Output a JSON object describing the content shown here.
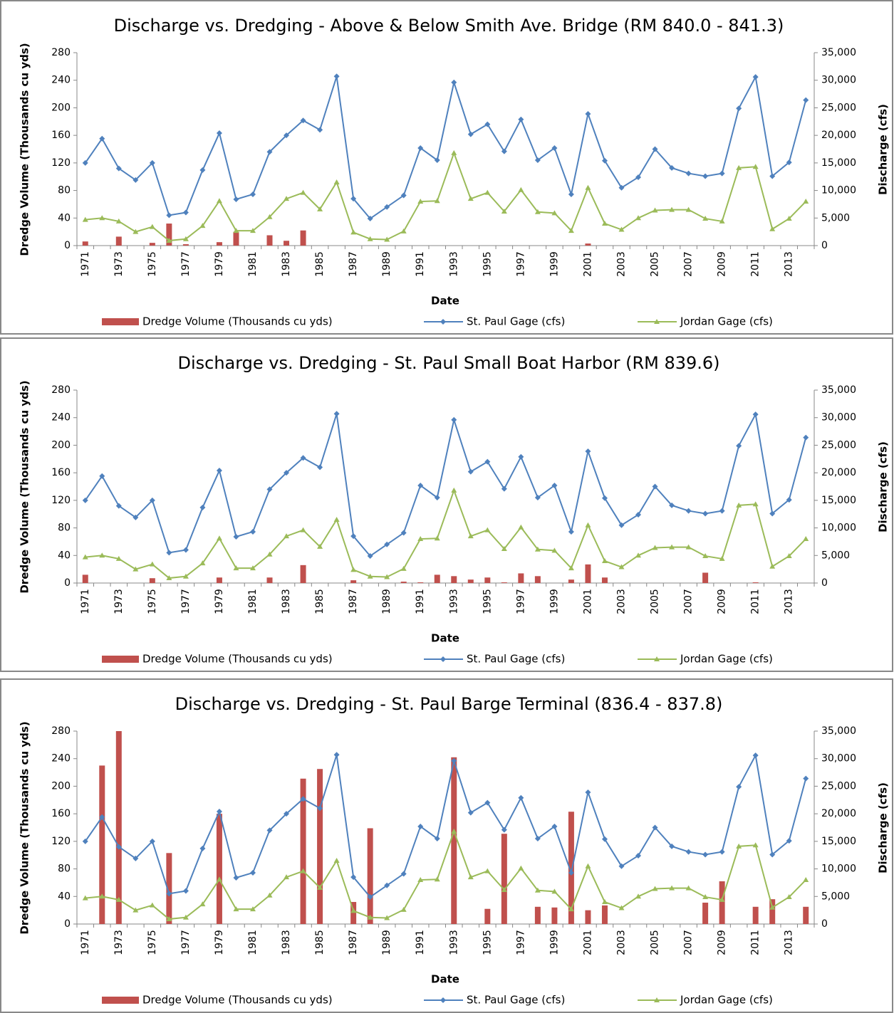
{
  "chart_data": [
    {
      "type": "bar-line",
      "title": "Discharge vs. Dredging - Above & Below Smith Ave. Bridge (RM 840.0 - 841.3)",
      "xlabel": "Date",
      "ylabel": "Dredge Volume (Thousands cu yds)",
      "y2label": "Discharge (cfs)",
      "categories": [
        "1971",
        null,
        "1973",
        null,
        "1975",
        null,
        "1977",
        null,
        "1979",
        null,
        "1981",
        null,
        "1983",
        null,
        "1985",
        null,
        "1987",
        null,
        "1989",
        null,
        "1991",
        null,
        "1993",
        null,
        "1995",
        null,
        "1997",
        null,
        "1999",
        null,
        "2001",
        null,
        "2003",
        null,
        "2005",
        null,
        "2007",
        null,
        "2009",
        null,
        "2011",
        null,
        "2013",
        null
      ],
      "series": [
        {
          "name": "Dredge Volume (Thousands cu yds)",
          "type": "bar",
          "color": "#c0504d",
          "values": [
            6,
            0,
            13,
            0,
            4,
            32,
            2,
            0,
            5,
            20,
            0,
            15,
            7,
            22,
            0,
            0,
            0,
            0,
            0,
            0,
            0,
            0,
            0,
            0,
            0,
            0,
            0,
            0,
            0,
            0,
            3,
            0,
            0,
            0,
            0,
            0,
            0,
            0,
            0,
            0,
            0,
            0,
            0,
            0
          ]
        },
        {
          "name": "St. Paul Gage (cfs)",
          "type": "line",
          "marker": "diamond",
          "axis": "y2",
          "color": "#4f81bd",
          "values": [
            15000,
            19400,
            14000,
            11900,
            15000,
            5500,
            6000,
            13700,
            20400,
            8400,
            9300,
            17000,
            20000,
            22700,
            21000,
            30700,
            8500,
            4900,
            7000,
            9100,
            17700,
            15500,
            29600,
            20200,
            22000,
            17100,
            22900,
            15500,
            17700,
            9300,
            23900,
            15400,
            10500,
            12400,
            17500,
            14100,
            13100,
            12600,
            13100,
            24900,
            30600,
            12600,
            15100,
            26400
          ]
        },
        {
          "name": "Jordan Gage (cfs)",
          "type": "line",
          "marker": "triangle",
          "axis": "y2",
          "color": "#9bbb59",
          "values": [
            4700,
            5000,
            4400,
            2500,
            3400,
            900,
            1200,
            3600,
            8100,
            2700,
            2700,
            5200,
            8500,
            9600,
            6600,
            11500,
            2400,
            1200,
            1100,
            2600,
            8000,
            8100,
            16800,
            8500,
            9600,
            6200,
            10100,
            6100,
            5900,
            2700,
            10500,
            4000,
            2900,
            5000,
            6400,
            6500,
            6500,
            4900,
            4400,
            14100,
            14300,
            3000,
            4900,
            8000
          ]
        }
      ],
      "ylim": [
        0,
        280
      ],
      "yticks": [
        0,
        40,
        80,
        120,
        160,
        200,
        240,
        280
      ],
      "y2lim": [
        0,
        35000
      ],
      "y2ticks": [
        0,
        {
          "value": 5000,
          "label": "5,000"
        },
        {
          "value": 10000,
          "label": "10,000"
        },
        {
          "value": 15000,
          "label": "15,000"
        },
        {
          "value": 20000,
          "label": "20,000"
        },
        {
          "value": 25000,
          "label": "25,000"
        },
        {
          "value": 30000,
          "label": "30,000"
        },
        {
          "value": 35000,
          "label": "35,000"
        }
      ],
      "grid": false,
      "legend": "bottom"
    },
    {
      "type": "bar-line",
      "title": "Discharge vs. Dredging - St. Paul Small Boat Harbor (RM 839.6)",
      "xlabel": "Date",
      "ylabel": "Dredge Volume (Thousands cu yds)",
      "y2label": "Discharge (cfs)",
      "categories": [
        "1971",
        null,
        "1973",
        null,
        "1975",
        null,
        "1977",
        null,
        "1979",
        null,
        "1981",
        null,
        "1983",
        null,
        "1985",
        null,
        "1987",
        null,
        "1989",
        null,
        "1991",
        null,
        "1993",
        null,
        "1995",
        null,
        "1997",
        null,
        "1999",
        null,
        "2001",
        null,
        "2003",
        null,
        "2005",
        null,
        "2007",
        null,
        "2009",
        null,
        "2011",
        null,
        "2013",
        null
      ],
      "series": [
        {
          "name": "Dredge Volume (Thousands cu yds)",
          "type": "bar",
          "color": "#c0504d",
          "values": [
            12,
            0,
            0,
            0,
            7,
            0,
            0,
            0,
            8,
            0,
            0,
            8,
            0,
            26,
            0,
            0,
            4,
            0,
            0,
            2,
            1,
            12,
            10,
            5,
            8,
            1,
            14,
            10,
            0,
            5,
            27,
            8,
            0,
            0,
            0,
            0,
            0,
            15,
            0,
            0,
            1,
            0,
            0,
            0
          ]
        },
        {
          "name": "St. Paul Gage (cfs)",
          "type": "line",
          "marker": "diamond",
          "axis": "y2",
          "color": "#4f81bd",
          "values": [
            15000,
            19400,
            14000,
            11900,
            15000,
            5500,
            6000,
            13700,
            20400,
            8400,
            9300,
            17000,
            20000,
            22700,
            21000,
            30700,
            8500,
            4900,
            7000,
            9100,
            17700,
            15500,
            29600,
            20200,
            22000,
            17100,
            22900,
            15500,
            17700,
            9300,
            23900,
            15400,
            10500,
            12400,
            17500,
            14100,
            13100,
            12600,
            13100,
            24900,
            30600,
            12600,
            15100,
            26400
          ]
        },
        {
          "name": "Jordan Gage (cfs)",
          "type": "line",
          "marker": "triangle",
          "axis": "y2",
          "color": "#9bbb59",
          "values": [
            4700,
            5000,
            4400,
            2500,
            3400,
            900,
            1200,
            3600,
            8100,
            2700,
            2700,
            5200,
            8500,
            9600,
            6600,
            11500,
            2400,
            1200,
            1100,
            2600,
            8000,
            8100,
            16800,
            8500,
            9600,
            6200,
            10100,
            6100,
            5900,
            2700,
            10500,
            4000,
            2900,
            5000,
            6400,
            6500,
            6500,
            4900,
            4400,
            14100,
            14300,
            3000,
            4900,
            8000
          ]
        }
      ],
      "ylim": [
        0,
        280
      ],
      "yticks": [
        0,
        40,
        80,
        120,
        160,
        200,
        240,
        280
      ],
      "y2lim": [
        0,
        35000
      ],
      "y2ticks": [
        0,
        {
          "value": 5000,
          "label": "5,000"
        },
        {
          "value": 10000,
          "label": "10,000"
        },
        {
          "value": 15000,
          "label": "15,000"
        },
        {
          "value": 20000,
          "label": "20,000"
        },
        {
          "value": 25000,
          "label": "25,000"
        },
        {
          "value": 30000,
          "label": "30,000"
        },
        {
          "value": 35000,
          "label": "35,000"
        }
      ],
      "grid": false,
      "legend": "bottom"
    },
    {
      "type": "bar-line",
      "title": "Discharge vs. Dredging - St. Paul Barge Terminal (836.4 - 837.8)",
      "xlabel": "Date",
      "ylabel": "Dredge Volume (Thousands cu yds)",
      "y2label": "Discharge (cfs)",
      "categories": [
        "1971",
        null,
        "1973",
        null,
        "1975",
        null,
        "1977",
        null,
        "1979",
        null,
        "1981",
        null,
        "1983",
        null,
        "1985",
        null,
        "1987",
        null,
        "1989",
        null,
        "1991",
        null,
        "1993",
        null,
        "1995",
        null,
        "1997",
        null,
        "1999",
        null,
        "2001",
        null,
        "2003",
        null,
        "2005",
        null,
        "2007",
        null,
        "2009",
        null,
        "2011",
        null,
        "2013",
        null
      ],
      "series": [
        {
          "name": "Dredge Volume (Thousands cu yds)",
          "type": "bar",
          "color": "#c0504d",
          "values": [
            0,
            230,
            280,
            0,
            0,
            103,
            0,
            0,
            160,
            0,
            0,
            0,
            0,
            211,
            225,
            0,
            32,
            139,
            0,
            0,
            0,
            0,
            242,
            0,
            22,
            131,
            0,
            25,
            24,
            163,
            20,
            27,
            0,
            0,
            0,
            0,
            0,
            31,
            62,
            0,
            25,
            36,
            0,
            25
          ]
        },
        {
          "name": "St. Paul Gage (cfs)",
          "type": "line",
          "marker": "diamond",
          "axis": "y2",
          "color": "#4f81bd",
          "values": [
            15000,
            19400,
            14000,
            11900,
            15000,
            5500,
            6000,
            13700,
            20400,
            8400,
            9300,
            17000,
            20000,
            22700,
            21000,
            30700,
            8500,
            4900,
            7000,
            9100,
            17700,
            15500,
            29600,
            20200,
            22000,
            17100,
            22900,
            15500,
            17700,
            9300,
            23900,
            15400,
            10500,
            12400,
            17500,
            14100,
            13100,
            12600,
            13100,
            24900,
            30600,
            12600,
            15100,
            26400
          ]
        },
        {
          "name": "Jordan Gage (cfs)",
          "type": "line",
          "marker": "triangle",
          "axis": "y2",
          "color": "#9bbb59",
          "values": [
            4700,
            5000,
            4400,
            2500,
            3400,
            900,
            1200,
            3600,
            8100,
            2700,
            2700,
            5200,
            8500,
            9600,
            6600,
            11500,
            2400,
            1200,
            1100,
            2600,
            8000,
            8100,
            16800,
            8500,
            9600,
            6200,
            10100,
            6100,
            5900,
            2700,
            10500,
            4000,
            2900,
            5000,
            6400,
            6500,
            6500,
            4900,
            4400,
            14100,
            14300,
            3000,
            4900,
            8000
          ]
        }
      ],
      "ylim": [
        0,
        280
      ],
      "yticks": [
        0,
        40,
        80,
        120,
        160,
        200,
        240,
        280
      ],
      "y2lim": [
        0,
        35000
      ],
      "y2ticks": [
        0,
        {
          "value": 5000,
          "label": "5,000"
        },
        {
          "value": 10000,
          "label": "10,000"
        },
        {
          "value": 15000,
          "label": "15,000"
        },
        {
          "value": 20000,
          "label": "20,000"
        },
        {
          "value": 25000,
          "label": "25,000"
        },
        {
          "value": 30000,
          "label": "30,000"
        },
        {
          "value": 35000,
          "label": "35,000"
        }
      ],
      "grid": false,
      "legend": "bottom"
    }
  ]
}
